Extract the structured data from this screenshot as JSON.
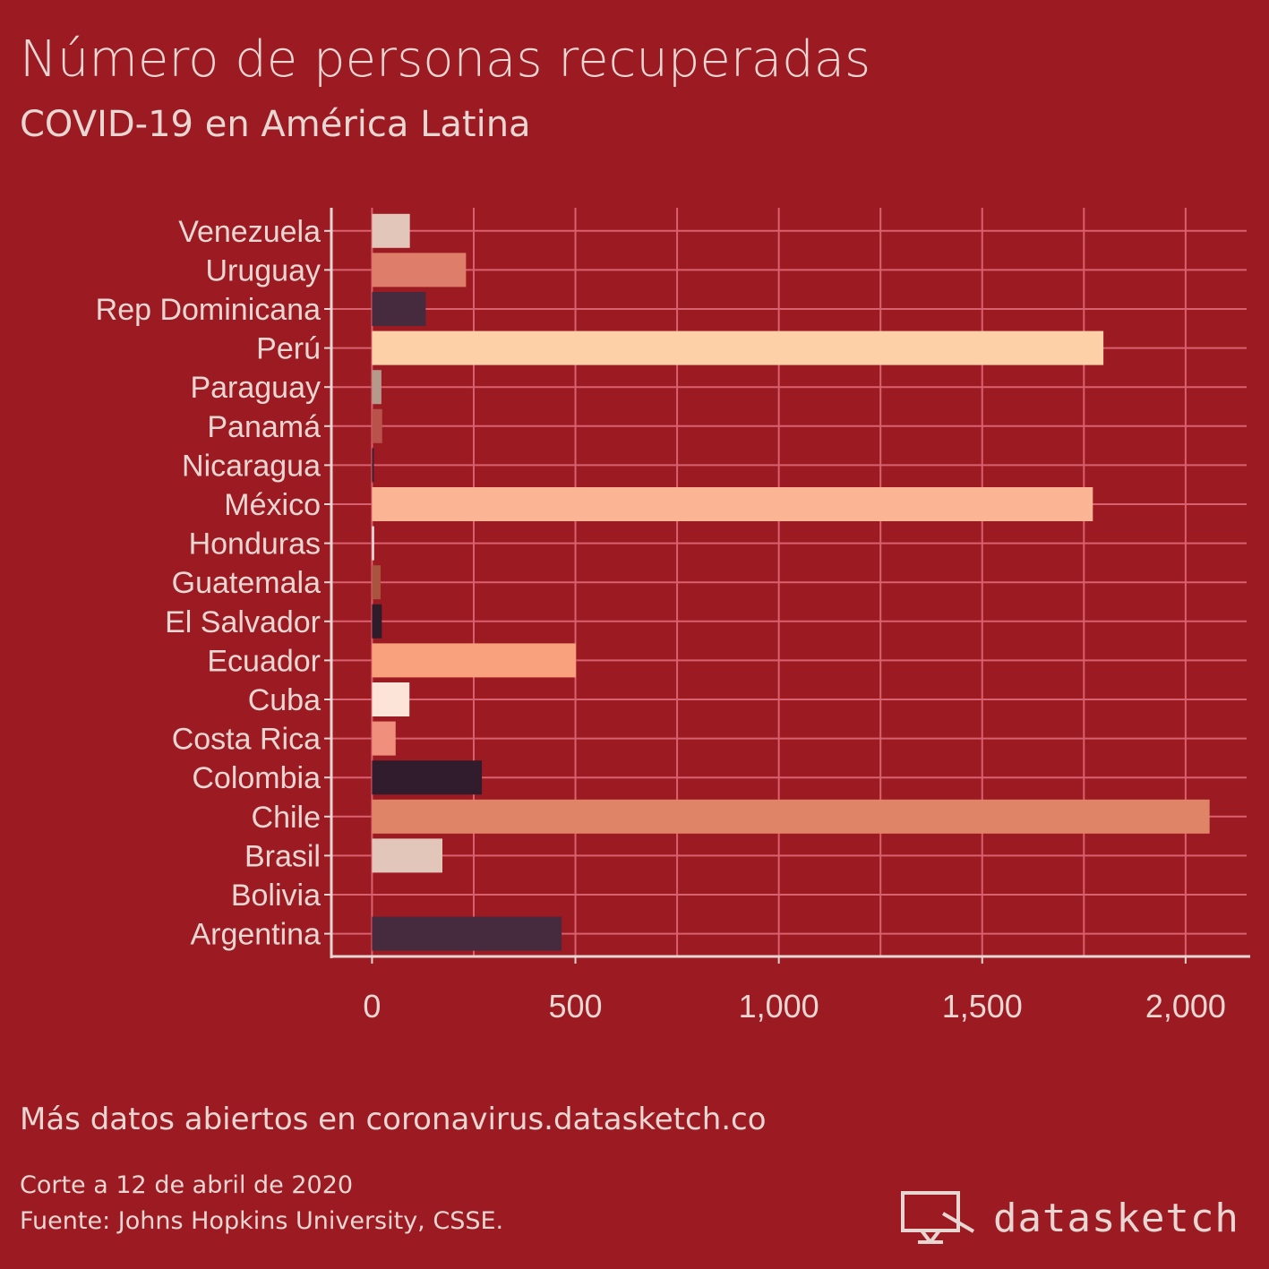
{
  "title": "Número de personas recuperadas",
  "subtitle": "COVID-19 en América Latina",
  "footer": {
    "more": "Más datos abiertos en coronavirus.datasketch.co",
    "cutoff": "Corte a 12 de abril de 2020",
    "source": "Fuente: Johns Hopkins University, CSSE."
  },
  "logo": {
    "text": "datasketch",
    "icon": "screen-with-pen-icon"
  },
  "colors": {
    "background": "#9c1a22",
    "grid": "#d9606e",
    "axis": "#e8d6d3",
    "text": "#e8d6d3"
  },
  "chart_data": {
    "type": "bar",
    "orientation": "horizontal",
    "xlim": [
      -100,
      2150
    ],
    "xticks": [
      0,
      500,
      1000,
      1500,
      2000
    ],
    "xtick_labels": [
      "0",
      "500",
      "1,000",
      "1,500",
      "2,000"
    ],
    "grid": true,
    "categories": [
      "Venezuela",
      "Uruguay",
      "Rep Dominicana",
      "Perú",
      "Paraguay",
      "Panamá",
      "Nicaragua",
      "México",
      "Honduras",
      "Guatemala",
      "El Salvador",
      "Ecuador",
      "Cuba",
      "Costa Rica",
      "Colombia",
      "Chile",
      "Brasil",
      "Bolivia",
      "Argentina"
    ],
    "values": [
      93,
      231,
      132,
      1798,
      23,
      25,
      4,
      1772,
      5,
      21,
      24,
      501,
      92,
      58,
      270,
      2059,
      173,
      0,
      466
    ],
    "bar_colors": [
      "#e2c6ba",
      "#de7e6a",
      "#452b3d",
      "#fdd0a8",
      "#b59a8c",
      "#b8524a",
      "#3a2030",
      "#fcb594",
      "#f7eee8",
      "#a8543f",
      "#2e1c2b",
      "#f9a07c",
      "#fde4d9",
      "#f08f7b",
      "#311c2d",
      "#e08468",
      "#e2c6ba",
      "#de7e6a",
      "#452b3d"
    ]
  }
}
